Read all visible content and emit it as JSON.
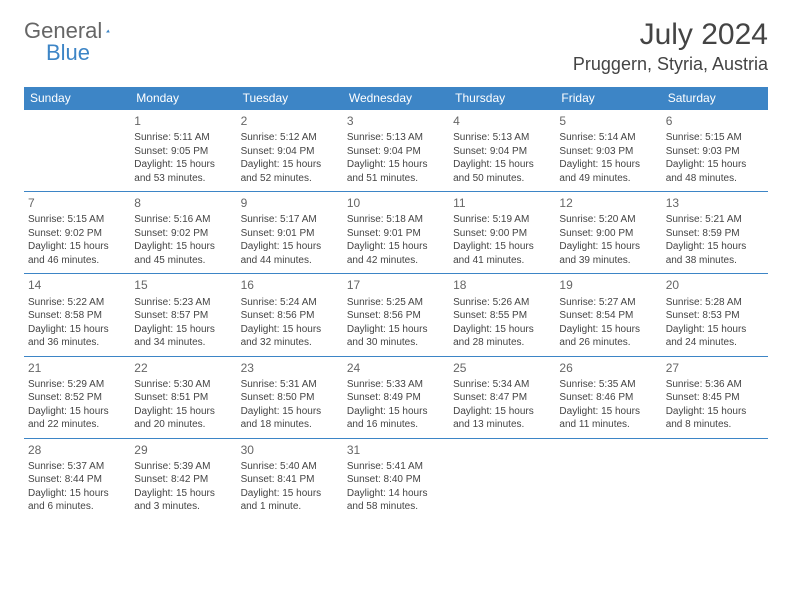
{
  "logo": {
    "part1": "General",
    "part2": "Blue"
  },
  "title": {
    "month": "July 2024",
    "location": "Pruggern, Styria, Austria"
  },
  "colors": {
    "header_bg": "#3d85c6",
    "header_text": "#ffffff",
    "rule": "#3d85c6",
    "text": "#444444"
  },
  "dayNames": [
    "Sunday",
    "Monday",
    "Tuesday",
    "Wednesday",
    "Thursday",
    "Friday",
    "Saturday"
  ],
  "firstDayOffset": 1,
  "days": [
    {
      "n": 1,
      "sr": "5:11 AM",
      "ss": "9:05 PM",
      "dl": "15 hours and 53 minutes."
    },
    {
      "n": 2,
      "sr": "5:12 AM",
      "ss": "9:04 PM",
      "dl": "15 hours and 52 minutes."
    },
    {
      "n": 3,
      "sr": "5:13 AM",
      "ss": "9:04 PM",
      "dl": "15 hours and 51 minutes."
    },
    {
      "n": 4,
      "sr": "5:13 AM",
      "ss": "9:04 PM",
      "dl": "15 hours and 50 minutes."
    },
    {
      "n": 5,
      "sr": "5:14 AM",
      "ss": "9:03 PM",
      "dl": "15 hours and 49 minutes."
    },
    {
      "n": 6,
      "sr": "5:15 AM",
      "ss": "9:03 PM",
      "dl": "15 hours and 48 minutes."
    },
    {
      "n": 7,
      "sr": "5:15 AM",
      "ss": "9:02 PM",
      "dl": "15 hours and 46 minutes."
    },
    {
      "n": 8,
      "sr": "5:16 AM",
      "ss": "9:02 PM",
      "dl": "15 hours and 45 minutes."
    },
    {
      "n": 9,
      "sr": "5:17 AM",
      "ss": "9:01 PM",
      "dl": "15 hours and 44 minutes."
    },
    {
      "n": 10,
      "sr": "5:18 AM",
      "ss": "9:01 PM",
      "dl": "15 hours and 42 minutes."
    },
    {
      "n": 11,
      "sr": "5:19 AM",
      "ss": "9:00 PM",
      "dl": "15 hours and 41 minutes."
    },
    {
      "n": 12,
      "sr": "5:20 AM",
      "ss": "9:00 PM",
      "dl": "15 hours and 39 minutes."
    },
    {
      "n": 13,
      "sr": "5:21 AM",
      "ss": "8:59 PM",
      "dl": "15 hours and 38 minutes."
    },
    {
      "n": 14,
      "sr": "5:22 AM",
      "ss": "8:58 PM",
      "dl": "15 hours and 36 minutes."
    },
    {
      "n": 15,
      "sr": "5:23 AM",
      "ss": "8:57 PM",
      "dl": "15 hours and 34 minutes."
    },
    {
      "n": 16,
      "sr": "5:24 AM",
      "ss": "8:56 PM",
      "dl": "15 hours and 32 minutes."
    },
    {
      "n": 17,
      "sr": "5:25 AM",
      "ss": "8:56 PM",
      "dl": "15 hours and 30 minutes."
    },
    {
      "n": 18,
      "sr": "5:26 AM",
      "ss": "8:55 PM",
      "dl": "15 hours and 28 minutes."
    },
    {
      "n": 19,
      "sr": "5:27 AM",
      "ss": "8:54 PM",
      "dl": "15 hours and 26 minutes."
    },
    {
      "n": 20,
      "sr": "5:28 AM",
      "ss": "8:53 PM",
      "dl": "15 hours and 24 minutes."
    },
    {
      "n": 21,
      "sr": "5:29 AM",
      "ss": "8:52 PM",
      "dl": "15 hours and 22 minutes."
    },
    {
      "n": 22,
      "sr": "5:30 AM",
      "ss": "8:51 PM",
      "dl": "15 hours and 20 minutes."
    },
    {
      "n": 23,
      "sr": "5:31 AM",
      "ss": "8:50 PM",
      "dl": "15 hours and 18 minutes."
    },
    {
      "n": 24,
      "sr": "5:33 AM",
      "ss": "8:49 PM",
      "dl": "15 hours and 16 minutes."
    },
    {
      "n": 25,
      "sr": "5:34 AM",
      "ss": "8:47 PM",
      "dl": "15 hours and 13 minutes."
    },
    {
      "n": 26,
      "sr": "5:35 AM",
      "ss": "8:46 PM",
      "dl": "15 hours and 11 minutes."
    },
    {
      "n": 27,
      "sr": "5:36 AM",
      "ss": "8:45 PM",
      "dl": "15 hours and 8 minutes."
    },
    {
      "n": 28,
      "sr": "5:37 AM",
      "ss": "8:44 PM",
      "dl": "15 hours and 6 minutes."
    },
    {
      "n": 29,
      "sr": "5:39 AM",
      "ss": "8:42 PM",
      "dl": "15 hours and 3 minutes."
    },
    {
      "n": 30,
      "sr": "5:40 AM",
      "ss": "8:41 PM",
      "dl": "15 hours and 1 minute."
    },
    {
      "n": 31,
      "sr": "5:41 AM",
      "ss": "8:40 PM",
      "dl": "14 hours and 58 minutes."
    }
  ],
  "labels": {
    "sunrise": "Sunrise:",
    "sunset": "Sunset:",
    "daylight": "Daylight:"
  }
}
